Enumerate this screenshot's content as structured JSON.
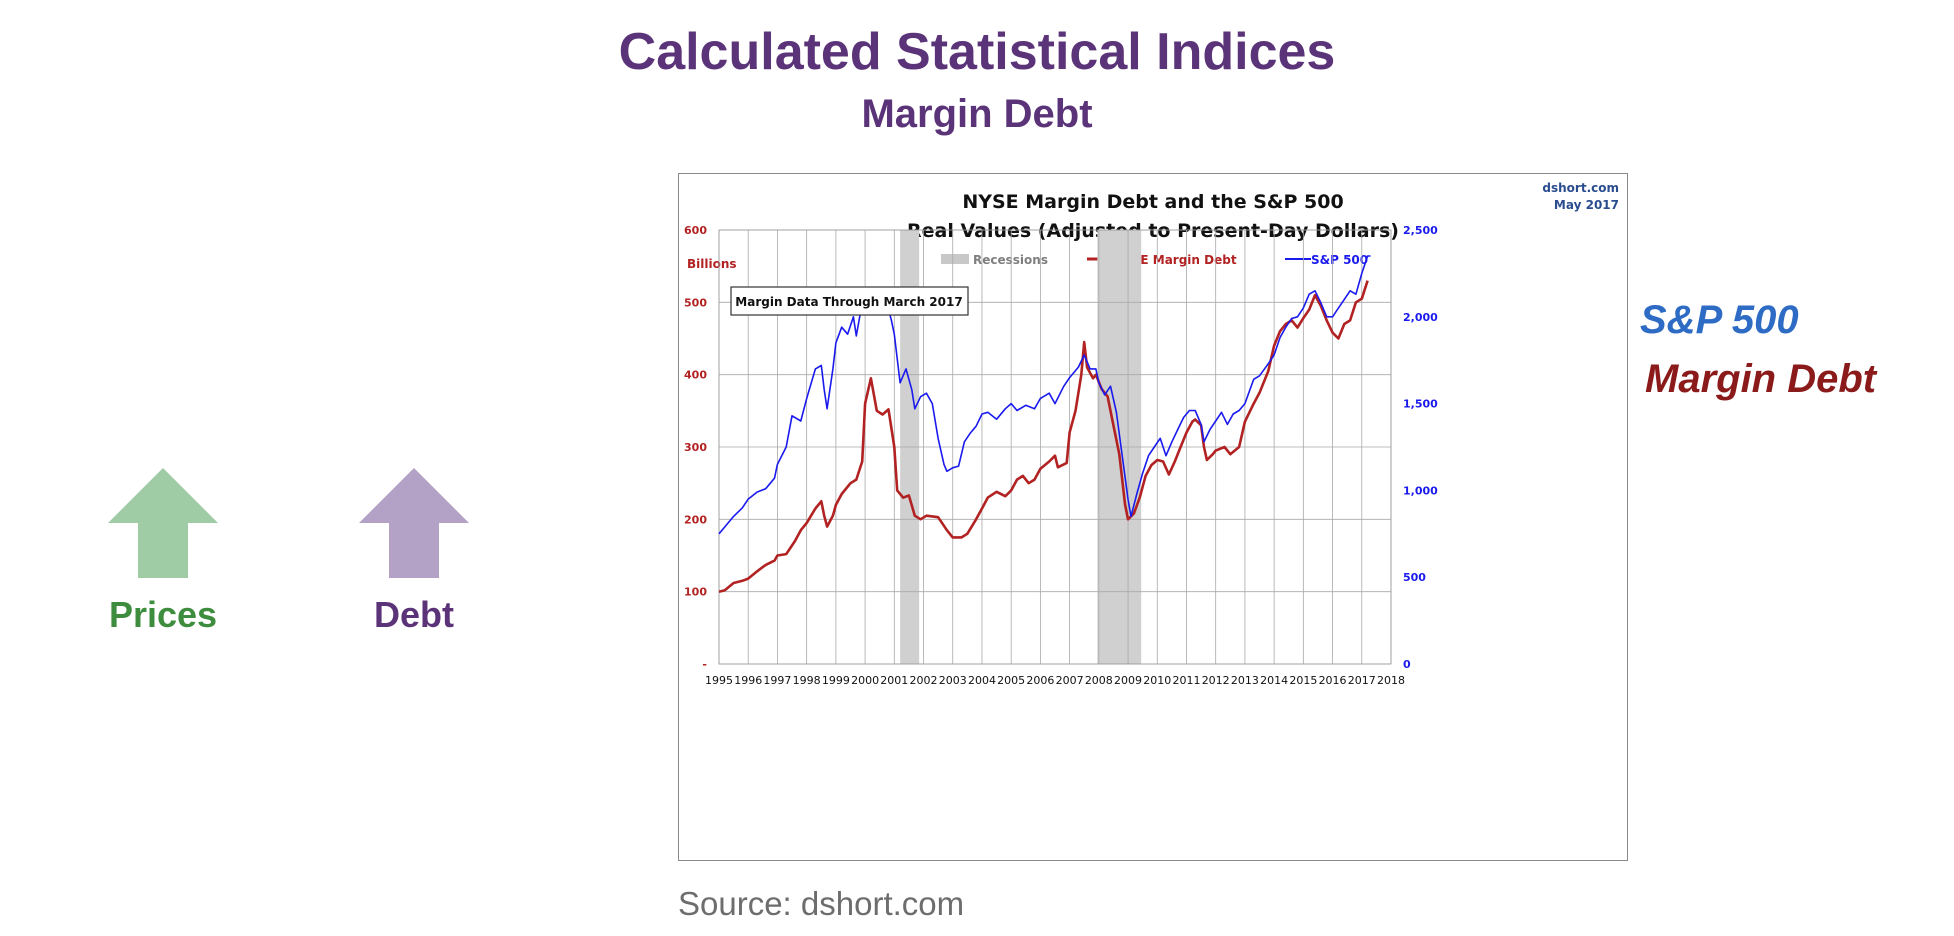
{
  "slide": {
    "title": "Calculated Statistical Indices",
    "subtitle": "Margin Debt",
    "prices_label": "Prices",
    "debt_label": "Debt",
    "side_label_sp": "S&P 500",
    "side_label_margin": "Margin Debt",
    "source": "Source: dshort.com",
    "colors": {
      "title": "#5b3379",
      "prices_arrow": "#9fcca4",
      "prices_text": "#3e8d3e",
      "debt_arrow": "#b4a2c6",
      "debt_text": "#5b3379",
      "sp_text": "#2d6bc4",
      "margin_text": "#8b1a1a"
    }
  },
  "chart_data": {
    "type": "line",
    "title": "NYSE Margin Debt and the S&P 500",
    "subtitle": "Real Values (Adjusted to Present-Day Dollars)",
    "credit": "dshort.com",
    "credit_date": "May 2017",
    "annotation": "Margin Data Through March 2017",
    "y_left_label": "Billions",
    "y_left_range": [
      0,
      600
    ],
    "y_left_ticks": [
      {
        "value": 0,
        "label": "-"
      },
      {
        "value": 100,
        "label": "100"
      },
      {
        "value": 200,
        "label": "200"
      },
      {
        "value": 300,
        "label": "300"
      },
      {
        "value": 400,
        "label": "400"
      },
      {
        "value": 500,
        "label": "500"
      },
      {
        "value": 600,
        "label": "600"
      }
    ],
    "y_right_range": [
      0,
      2500
    ],
    "y_right_ticks": [
      {
        "value": 0,
        "label": "0"
      },
      {
        "value": 500,
        "label": "500"
      },
      {
        "value": 1000,
        "label": "1,000"
      },
      {
        "value": 1500,
        "label": "1,500"
      },
      {
        "value": 2000,
        "label": "2,000"
      },
      {
        "value": 2500,
        "label": "2,500"
      }
    ],
    "x_range": [
      1995,
      2018
    ],
    "x_ticks": [
      "1995",
      "1996",
      "1997",
      "1998",
      "1999",
      "2000",
      "2001",
      "2002",
      "2003",
      "2004",
      "2005",
      "2006",
      "2007",
      "2008",
      "2009",
      "2010",
      "2011",
      "2012",
      "2013",
      "2014",
      "2015",
      "2016",
      "2017",
      "2018"
    ],
    "grid": true,
    "legend_position": "top-center",
    "legend": [
      {
        "name": "Recessions",
        "kind": "band",
        "color": "#c8c8c8",
        "text_color": "#7f7f7f"
      },
      {
        "name": "NYSE Margin Debt",
        "kind": "line",
        "color": "#b22222",
        "text_color": "#b22222"
      },
      {
        "name": "S&P 500",
        "kind": "line",
        "color": "#1a1aee",
        "text_color": "#1a1aee"
      }
    ],
    "recessions": [
      {
        "start": 2001.2,
        "end": 2001.85
      },
      {
        "start": 2007.95,
        "end": 2009.45
      }
    ],
    "series": [
      {
        "name": "NYSE Margin Debt",
        "axis": "left",
        "color": "#b22222",
        "points": [
          [
            1995.0,
            100
          ],
          [
            1995.2,
            102
          ],
          [
            1995.5,
            112
          ],
          [
            1995.8,
            115
          ],
          [
            1996.0,
            118
          ],
          [
            1996.3,
            128
          ],
          [
            1996.6,
            137
          ],
          [
            1996.9,
            143
          ],
          [
            1997.0,
            150
          ],
          [
            1997.3,
            152
          ],
          [
            1997.6,
            170
          ],
          [
            1997.8,
            185
          ],
          [
            1998.0,
            195
          ],
          [
            1998.3,
            215
          ],
          [
            1998.5,
            225
          ],
          [
            1998.6,
            205
          ],
          [
            1998.7,
            190
          ],
          [
            1998.9,
            205
          ],
          [
            1999.0,
            220
          ],
          [
            1999.2,
            235
          ],
          [
            1999.5,
            250
          ],
          [
            1999.7,
            255
          ],
          [
            1999.9,
            280
          ],
          [
            2000.0,
            360
          ],
          [
            2000.2,
            395
          ],
          [
            2000.4,
            350
          ],
          [
            2000.6,
            345
          ],
          [
            2000.8,
            352
          ],
          [
            2001.0,
            300
          ],
          [
            2001.1,
            240
          ],
          [
            2001.3,
            230
          ],
          [
            2001.5,
            233
          ],
          [
            2001.7,
            205
          ],
          [
            2001.9,
            200
          ],
          [
            2002.1,
            205
          ],
          [
            2002.5,
            203
          ],
          [
            2002.8,
            185
          ],
          [
            2003.0,
            175
          ],
          [
            2003.3,
            175
          ],
          [
            2003.5,
            180
          ],
          [
            2003.8,
            200
          ],
          [
            2004.0,
            215
          ],
          [
            2004.2,
            230
          ],
          [
            2004.5,
            238
          ],
          [
            2004.8,
            232
          ],
          [
            2005.0,
            240
          ],
          [
            2005.2,
            255
          ],
          [
            2005.4,
            260
          ],
          [
            2005.6,
            250
          ],
          [
            2005.8,
            255
          ],
          [
            2006.0,
            270
          ],
          [
            2006.3,
            280
          ],
          [
            2006.5,
            288
          ],
          [
            2006.6,
            272
          ],
          [
            2006.9,
            278
          ],
          [
            2007.0,
            320
          ],
          [
            2007.2,
            350
          ],
          [
            2007.4,
            400
          ],
          [
            2007.5,
            445
          ],
          [
            2007.6,
            410
          ],
          [
            2007.8,
            395
          ],
          [
            2007.9,
            400
          ],
          [
            2008.1,
            380
          ],
          [
            2008.3,
            370
          ],
          [
            2008.5,
            330
          ],
          [
            2008.7,
            290
          ],
          [
            2008.9,
            220
          ],
          [
            2009.0,
            200
          ],
          [
            2009.2,
            208
          ],
          [
            2009.4,
            230
          ],
          [
            2009.6,
            260
          ],
          [
            2009.8,
            275
          ],
          [
            2010.0,
            282
          ],
          [
            2010.2,
            280
          ],
          [
            2010.4,
            262
          ],
          [
            2010.6,
            280
          ],
          [
            2010.8,
            300
          ],
          [
            2011.0,
            320
          ],
          [
            2011.2,
            335
          ],
          [
            2011.3,
            338
          ],
          [
            2011.5,
            330
          ],
          [
            2011.6,
            300
          ],
          [
            2011.7,
            282
          ],
          [
            2011.9,
            290
          ],
          [
            2012.0,
            295
          ],
          [
            2012.3,
            300
          ],
          [
            2012.5,
            290
          ],
          [
            2012.8,
            300
          ],
          [
            2013.0,
            335
          ],
          [
            2013.3,
            360
          ],
          [
            2013.5,
            375
          ],
          [
            2013.8,
            405
          ],
          [
            2014.0,
            440
          ],
          [
            2014.2,
            460
          ],
          [
            2014.4,
            470
          ],
          [
            2014.6,
            475
          ],
          [
            2014.8,
            465
          ],
          [
            2015.0,
            478
          ],
          [
            2015.2,
            490
          ],
          [
            2015.4,
            510
          ],
          [
            2015.6,
            495
          ],
          [
            2015.8,
            475
          ],
          [
            2016.0,
            458
          ],
          [
            2016.2,
            450
          ],
          [
            2016.4,
            470
          ],
          [
            2016.6,
            475
          ],
          [
            2016.8,
            500
          ],
          [
            2017.0,
            505
          ],
          [
            2017.2,
            530
          ]
        ]
      },
      {
        "name": "S&P 500",
        "axis": "right",
        "color": "#1a1aee",
        "points": [
          [
            1995.0,
            750
          ],
          [
            1995.2,
            790
          ],
          [
            1995.5,
            850
          ],
          [
            1995.8,
            900
          ],
          [
            1996.0,
            950
          ],
          [
            1996.3,
            990
          ],
          [
            1996.6,
            1010
          ],
          [
            1996.9,
            1070
          ],
          [
            1997.0,
            1150
          ],
          [
            1997.3,
            1250
          ],
          [
            1997.5,
            1430
          ],
          [
            1997.8,
            1400
          ],
          [
            1998.0,
            1530
          ],
          [
            1998.3,
            1700
          ],
          [
            1998.5,
            1720
          ],
          [
            1998.6,
            1580
          ],
          [
            1998.7,
            1470
          ],
          [
            1998.9,
            1700
          ],
          [
            1999.0,
            1850
          ],
          [
            1999.2,
            1940
          ],
          [
            1999.4,
            1900
          ],
          [
            1999.6,
            2000
          ],
          [
            1999.7,
            1890
          ],
          [
            1999.9,
            2080
          ],
          [
            2000.0,
            2100
          ],
          [
            2000.2,
            2060
          ],
          [
            2000.3,
            2110
          ],
          [
            2000.5,
            2070
          ],
          [
            2000.7,
            2110
          ],
          [
            2000.9,
            1980
          ],
          [
            2001.0,
            1900
          ],
          [
            2001.2,
            1620
          ],
          [
            2001.4,
            1700
          ],
          [
            2001.6,
            1580
          ],
          [
            2001.7,
            1470
          ],
          [
            2001.9,
            1540
          ],
          [
            2002.1,
            1560
          ],
          [
            2002.3,
            1500
          ],
          [
            2002.5,
            1300
          ],
          [
            2002.7,
            1150
          ],
          [
            2002.8,
            1110
          ],
          [
            2003.0,
            1130
          ],
          [
            2003.2,
            1140
          ],
          [
            2003.4,
            1280
          ],
          [
            2003.6,
            1330
          ],
          [
            2003.8,
            1370
          ],
          [
            2004.0,
            1440
          ],
          [
            2004.2,
            1450
          ],
          [
            2004.5,
            1410
          ],
          [
            2004.8,
            1470
          ],
          [
            2005.0,
            1500
          ],
          [
            2005.2,
            1460
          ],
          [
            2005.5,
            1490
          ],
          [
            2005.8,
            1470
          ],
          [
            2006.0,
            1530
          ],
          [
            2006.3,
            1560
          ],
          [
            2006.5,
            1500
          ],
          [
            2006.8,
            1600
          ],
          [
            2007.0,
            1650
          ],
          [
            2007.3,
            1710
          ],
          [
            2007.5,
            1780
          ],
          [
            2007.7,
            1700
          ],
          [
            2007.9,
            1700
          ],
          [
            2008.0,
            1620
          ],
          [
            2008.2,
            1550
          ],
          [
            2008.4,
            1600
          ],
          [
            2008.6,
            1450
          ],
          [
            2008.8,
            1200
          ],
          [
            2009.0,
            950
          ],
          [
            2009.1,
            850
          ],
          [
            2009.3,
            980
          ],
          [
            2009.5,
            1100
          ],
          [
            2009.7,
            1200
          ],
          [
            2009.9,
            1250
          ],
          [
            2010.1,
            1300
          ],
          [
            2010.3,
            1200
          ],
          [
            2010.5,
            1280
          ],
          [
            2010.7,
            1350
          ],
          [
            2010.9,
            1420
          ],
          [
            2011.1,
            1460
          ],
          [
            2011.3,
            1460
          ],
          [
            2011.5,
            1380
          ],
          [
            2011.6,
            1280
          ],
          [
            2011.8,
            1350
          ],
          [
            2012.0,
            1400
          ],
          [
            2012.2,
            1450
          ],
          [
            2012.4,
            1380
          ],
          [
            2012.6,
            1440
          ],
          [
            2012.8,
            1460
          ],
          [
            2013.0,
            1500
          ],
          [
            2013.3,
            1640
          ],
          [
            2013.5,
            1660
          ],
          [
            2013.8,
            1730
          ],
          [
            2014.0,
            1780
          ],
          [
            2014.2,
            1880
          ],
          [
            2014.4,
            1940
          ],
          [
            2014.6,
            1990
          ],
          [
            2014.8,
            2000
          ],
          [
            2015.0,
            2050
          ],
          [
            2015.2,
            2130
          ],
          [
            2015.4,
            2150
          ],
          [
            2015.6,
            2080
          ],
          [
            2015.8,
            2000
          ],
          [
            2016.0,
            2000
          ],
          [
            2016.2,
            2050
          ],
          [
            2016.4,
            2100
          ],
          [
            2016.6,
            2150
          ],
          [
            2016.8,
            2130
          ],
          [
            2017.0,
            2250
          ],
          [
            2017.2,
            2350
          ],
          [
            2017.3,
            2350
          ]
        ]
      }
    ]
  }
}
